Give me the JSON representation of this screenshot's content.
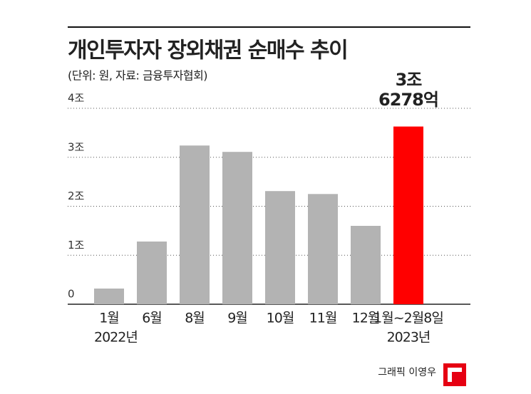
{
  "chart_data": {
    "type": "bar",
    "title": "개인투자자 장외채권 순매수 추이",
    "subtitle": "(단위: 원, 자료: 금융투자협회)",
    "credit": "그래픽 이영우",
    "categories": [
      "1월",
      "6월",
      "8월",
      "9월",
      "10월",
      "11월",
      "12월",
      "1월~2월8일"
    ],
    "x_sublabels": [
      "2022년",
      null,
      null,
      null,
      null,
      null,
      null,
      "2023년"
    ],
    "values": [
      0.32,
      1.28,
      3.24,
      3.11,
      2.31,
      2.25,
      1.6,
      3.6278
    ],
    "value_labels": [
      null,
      null,
      null,
      null,
      null,
      null,
      null,
      "3조 6278억"
    ],
    "colors": [
      "#b3b3b3",
      "#b3b3b3",
      "#b3b3b3",
      "#b3b3b3",
      "#b3b3b3",
      "#b3b3b3",
      "#b3b3b3",
      "#ff0000"
    ],
    "ylim": [
      0,
      4
    ],
    "yticks": [
      0,
      {
        "value": 1,
        "label": "1조"
      },
      {
        "value": 2,
        "label": "2조"
      },
      {
        "value": 3,
        "label": "3조"
      },
      {
        "value": 4,
        "label": "4조"
      }
    ],
    "grid": true
  }
}
